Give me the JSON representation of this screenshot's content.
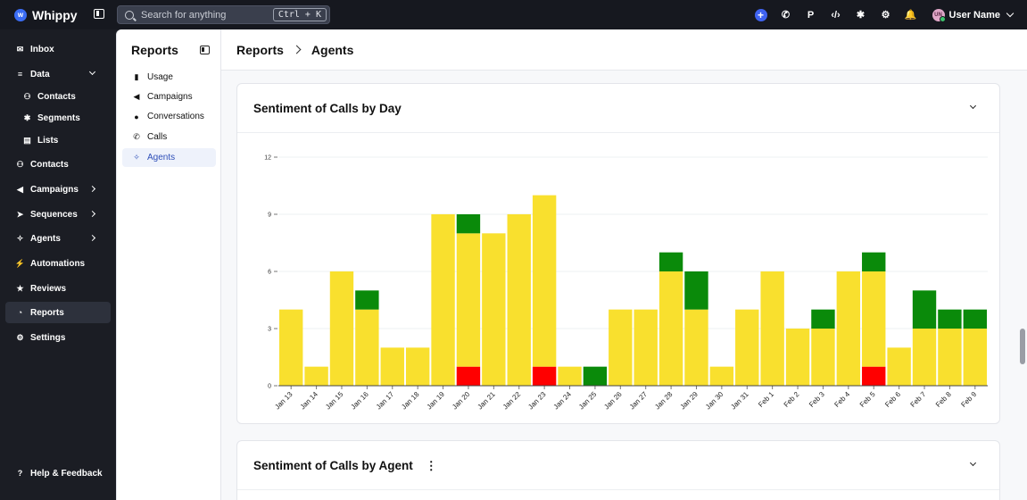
{
  "app": {
    "name": "Whippy"
  },
  "search": {
    "placeholder": "Search for anything",
    "shortcut": "Ctrl + K"
  },
  "topbar": {
    "user_name": "User Name",
    "user_initials": "UN",
    "icons": [
      "plus-icon",
      "phone-icon",
      "p-icon",
      "code-icon",
      "puzzle-icon",
      "gear-icon",
      "bell-icon"
    ],
    "p_label": "P"
  },
  "sidebar": {
    "items": [
      {
        "label": "Inbox",
        "icon": "inbox-icon",
        "glyph": "✉"
      },
      {
        "label": "Data",
        "icon": "database-icon",
        "glyph": "≡"
      },
      {
        "label": "Contacts",
        "icon": "users-icon",
        "glyph": "⚇"
      },
      {
        "label": "Segments",
        "icon": "puzzle-icon",
        "glyph": "✱"
      },
      {
        "label": "Lists",
        "icon": "list-icon",
        "glyph": "▤"
      },
      {
        "label": "Contacts",
        "icon": "users-icon",
        "glyph": "⚇"
      },
      {
        "label": "Campaigns",
        "icon": "megaphone-icon",
        "glyph": "◀"
      },
      {
        "label": "Sequences",
        "icon": "send-icon",
        "glyph": "➤"
      },
      {
        "label": "Agents",
        "icon": "agent-icon",
        "glyph": "✧"
      },
      {
        "label": "Automations",
        "icon": "lightning-icon",
        "glyph": "⚡"
      },
      {
        "label": "Reviews",
        "icon": "star-icon",
        "glyph": "★"
      },
      {
        "label": "Reports",
        "icon": "pie-chart-icon",
        "glyph": "◔"
      },
      {
        "label": "Settings",
        "icon": "gear-icon",
        "glyph": "⚙"
      }
    ],
    "help": {
      "label": "Help & Feedback",
      "glyph": "?"
    }
  },
  "subnav": {
    "title": "Reports",
    "items": [
      {
        "label": "Usage",
        "glyph": "▮"
      },
      {
        "label": "Campaigns",
        "glyph": "◀"
      },
      {
        "label": "Conversations",
        "glyph": "●"
      },
      {
        "label": "Calls",
        "glyph": "✆"
      },
      {
        "label": "Agents",
        "glyph": "✧"
      }
    ]
  },
  "breadcrumb": {
    "root": "Reports",
    "current": "Agents"
  },
  "cards": {
    "day": {
      "title": "Sentiment of Calls by Day"
    },
    "agent": {
      "title": "Sentiment of Calls by Agent",
      "menu_glyph": "⋮"
    }
  },
  "chart_data": {
    "type": "bar",
    "stacked": true,
    "categories": [
      "Jan 13",
      "Jan 14",
      "Jan 15",
      "Jan 16",
      "Jan 17",
      "Jan 18",
      "Jan 19",
      "Jan 20",
      "Jan 21",
      "Jan 22",
      "Jan 23",
      "Jan 24",
      "Jan 25",
      "Jan 26",
      "Jan 27",
      "Jan 28",
      "Jan 29",
      "Jan 30",
      "Jan 31",
      "Feb 1",
      "Feb 2",
      "Feb 3",
      "Feb 4",
      "Feb 5",
      "Feb 6",
      "Feb 7",
      "Feb 8",
      "Feb 9"
    ],
    "series": [
      {
        "color": "#ff0000",
        "values": [
          0,
          0,
          0,
          0,
          0,
          0,
          0,
          1,
          0,
          0,
          1,
          0,
          0,
          0,
          0,
          0,
          0,
          0,
          0,
          0,
          0,
          0,
          0,
          1,
          0,
          0,
          0,
          0
        ]
      },
      {
        "color": "#f9e02e",
        "values": [
          4,
          1,
          6,
          4,
          2,
          2,
          9,
          7,
          8,
          9,
          9,
          1,
          0,
          4,
          4,
          6,
          4,
          1,
          4,
          6,
          3,
          3,
          6,
          5,
          2,
          3,
          3,
          3
        ]
      },
      {
        "color": "#0a8a0a",
        "values": [
          0,
          0,
          0,
          1,
          0,
          0,
          0,
          1,
          0,
          0,
          0,
          0,
          1,
          0,
          0,
          1,
          2,
          0,
          0,
          0,
          0,
          1,
          0,
          1,
          0,
          2,
          1,
          1
        ]
      }
    ],
    "yticks": [
      0,
      3,
      6,
      9,
      12
    ],
    "ylim": [
      0,
      12
    ],
    "grid": true,
    "legend": "none",
    "title": "",
    "xlabel": "",
    "ylabel": ""
  }
}
